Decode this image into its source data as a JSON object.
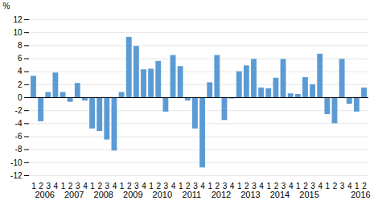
{
  "chart_data": {
    "type": "bar",
    "categories": [
      "1",
      "2",
      "3",
      "4",
      "1",
      "2",
      "3",
      "4",
      "1",
      "2",
      "3",
      "4",
      "1",
      "2",
      "3",
      "4",
      "1",
      "2",
      "3",
      "4",
      "1",
      "2",
      "3",
      "4",
      "1",
      "2",
      "3",
      "4",
      "1",
      "2",
      "3",
      "4",
      "1",
      "2",
      "3",
      "4",
      "1",
      "2",
      "3",
      "4",
      "1",
      "2",
      "3",
      "4",
      "1",
      "2"
    ],
    "values": [
      3.3,
      -3.7,
      0.8,
      3.8,
      0.8,
      -0.7,
      2.2,
      -0.5,
      -4.8,
      -5.2,
      -6.5,
      -8.2,
      0.8,
      9.3,
      7.9,
      4.3,
      4.4,
      5.6,
      -2.2,
      6.5,
      4.8,
      -0.5,
      -4.8,
      -10.8,
      2.3,
      6.5,
      -3.5,
      -0.2,
      4.0,
      4.9,
      5.9,
      1.5,
      1.4,
      3.0,
      5.9,
      0.6,
      0.5,
      3.1,
      2.0,
      6.7,
      -2.6,
      -4.0,
      5.9,
      -1.0,
      -2.2,
      1.5
    ],
    "color": "#5B9BD5",
    "ylabel": "%",
    "ylim": [
      -12,
      12
    ],
    "yticks": [
      -12,
      -10,
      -8,
      -6,
      -4,
      -2,
      0,
      2,
      4,
      6,
      8,
      10,
      12
    ],
    "grid": true,
    "annotations": [
      {
        "text": "2006",
        "x": 1.5
      },
      {
        "text": "2007",
        "x": 5.5
      },
      {
        "text": "2008",
        "x": 9.5
      },
      {
        "text": "2009",
        "x": 13.5
      },
      {
        "text": "2010",
        "x": 17.5
      },
      {
        "text": "2011",
        "x": 21.5
      },
      {
        "text": "2012",
        "x": 25.5
      },
      {
        "text": "2013",
        "x": 29.5
      },
      {
        "text": "2014",
        "x": 33.5
      },
      {
        "text": "2015",
        "x": 37.5
      },
      {
        "text": "2016",
        "x": 44.5
      }
    ]
  }
}
